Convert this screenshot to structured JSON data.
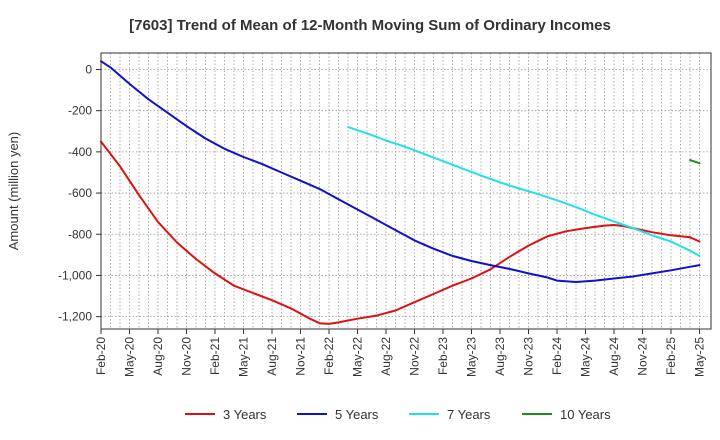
{
  "chart_data": {
    "type": "line",
    "title": "[7603]  Trend of Mean of 12-Month Moving Sum of Ordinary Incomes",
    "xlabel": "",
    "ylabel": "Amount (million yen)",
    "ylim": [
      -1260,
      80
    ],
    "yticks": [
      0,
      -200,
      -400,
      -600,
      -800,
      -1000,
      -1200
    ],
    "ytick_labels": [
      "0",
      "-200",
      "-400",
      "-600",
      "-800",
      "-1,000",
      "-1,200"
    ],
    "grid": true,
    "legend_position": "bottom",
    "x_start_label": "Feb-20",
    "x_count": 64,
    "categories": [
      "Feb-20",
      "May-20",
      "Aug-20",
      "Nov-20",
      "Feb-21",
      "May-21",
      "Aug-21",
      "Nov-21",
      "Feb-22",
      "May-22",
      "Aug-22",
      "Nov-22",
      "Feb-23",
      "May-23",
      "Aug-23",
      "Nov-23",
      "Feb-24",
      "May-24",
      "Aug-24",
      "Nov-24",
      "Feb-25",
      "May-25"
    ],
    "series": [
      {
        "name": "3 Years",
        "color": "#dd1111",
        "points": [
          [
            0,
            -350
          ],
          [
            2,
            -470
          ],
          [
            4,
            -610
          ],
          [
            6,
            -740
          ],
          [
            8,
            -840
          ],
          [
            10,
            -920
          ],
          [
            12,
            -990
          ],
          [
            14,
            -1050
          ],
          [
            16,
            -1085
          ],
          [
            18,
            -1120
          ],
          [
            20,
            -1160
          ],
          [
            22,
            -1210
          ],
          [
            23,
            -1232
          ],
          [
            24,
            -1235
          ],
          [
            25,
            -1228
          ],
          [
            27,
            -1210
          ],
          [
            29,
            -1195
          ],
          [
            31,
            -1170
          ],
          [
            33,
            -1130
          ],
          [
            35,
            -1090
          ],
          [
            37,
            -1050
          ],
          [
            39,
            -1015
          ],
          [
            41,
            -970
          ],
          [
            43,
            -910
          ],
          [
            45,
            -855
          ],
          [
            47,
            -810
          ],
          [
            49,
            -785
          ],
          [
            51,
            -770
          ],
          [
            53,
            -758
          ],
          [
            54,
            -755
          ],
          [
            55,
            -760
          ],
          [
            56,
            -770
          ],
          [
            58,
            -790
          ],
          [
            60,
            -805
          ],
          [
            62,
            -815
          ],
          [
            63,
            -835
          ]
        ]
      },
      {
        "name": "5 Years",
        "color": "#1111cc",
        "points": [
          [
            0,
            40
          ],
          [
            1,
            10
          ],
          [
            3,
            -70
          ],
          [
            5,
            -145
          ],
          [
            7,
            -210
          ],
          [
            9,
            -275
          ],
          [
            11,
            -335
          ],
          [
            13,
            -385
          ],
          [
            15,
            -425
          ],
          [
            17,
            -460
          ],
          [
            19,
            -500
          ],
          [
            21,
            -540
          ],
          [
            23,
            -580
          ],
          [
            25,
            -630
          ],
          [
            27,
            -680
          ],
          [
            29,
            -730
          ],
          [
            31,
            -780
          ],
          [
            33,
            -830
          ],
          [
            35,
            -870
          ],
          [
            37,
            -905
          ],
          [
            39,
            -930
          ],
          [
            41,
            -950
          ],
          [
            43,
            -968
          ],
          [
            45,
            -990
          ],
          [
            47,
            -1010
          ],
          [
            48,
            -1025
          ],
          [
            50,
            -1032
          ],
          [
            52,
            -1025
          ],
          [
            54,
            -1015
          ],
          [
            56,
            -1005
          ],
          [
            58,
            -990
          ],
          [
            60,
            -975
          ],
          [
            62,
            -958
          ],
          [
            63,
            -950
          ]
        ]
      },
      {
        "name": "7 Years",
        "color": "#22e0e8",
        "points": [
          [
            26,
            -280
          ],
          [
            28,
            -310
          ],
          [
            30,
            -345
          ],
          [
            32,
            -375
          ],
          [
            34,
            -410
          ],
          [
            36,
            -445
          ],
          [
            38,
            -480
          ],
          [
            40,
            -515
          ],
          [
            42,
            -548
          ],
          [
            44,
            -578
          ],
          [
            46,
            -605
          ],
          [
            48,
            -635
          ],
          [
            50,
            -668
          ],
          [
            52,
            -705
          ],
          [
            54,
            -738
          ],
          [
            56,
            -770
          ],
          [
            58,
            -805
          ],
          [
            60,
            -835
          ],
          [
            62,
            -880
          ],
          [
            63,
            -905
          ]
        ]
      },
      {
        "name": "10 Years",
        "color": "#228822",
        "points": [
          [
            62,
            -440
          ],
          [
            63,
            -455
          ]
        ]
      }
    ]
  }
}
